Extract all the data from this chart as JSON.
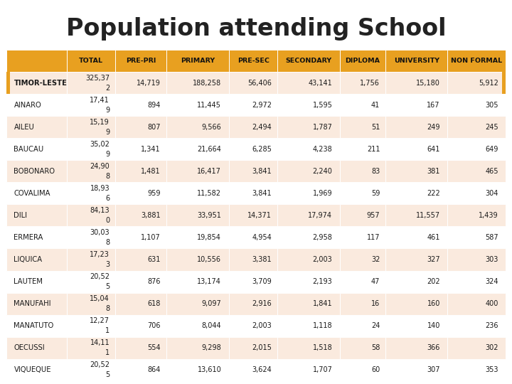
{
  "title": "Population attending School",
  "col_headers": [
    "",
    "TOTAL",
    "PRE-PRI",
    "PRIMARY",
    "PRE-SEC",
    "SECONDARY",
    "DIPLOMA",
    "UNIVERSITY",
    "NON FORMAL"
  ],
  "rows": [
    {
      "name": "TIMOR-LESTE",
      "total": "325,372",
      "pre_pri": "14,719",
      "primary": "188,258",
      "pre_sec": "56,406",
      "secondary": "43,141",
      "diploma": "1,756",
      "university": "15,180",
      "non_formal": "5,912"
    },
    {
      "name": "AINARO",
      "total": "17,419",
      "pre_pri": "894",
      "primary": "11,445",
      "pre_sec": "2,972",
      "secondary": "1,595",
      "diploma": "41",
      "university": "167",
      "non_formal": "305"
    },
    {
      "name": "AILEU",
      "total": "15,199",
      "pre_pri": "807",
      "primary": "9,566",
      "pre_sec": "2,494",
      "secondary": "1,787",
      "diploma": "51",
      "university": "249",
      "non_formal": "245"
    },
    {
      "name": "BAUCAU",
      "total": "35,029",
      "pre_pri": "1,341",
      "primary": "21,664",
      "pre_sec": "6,285",
      "secondary": "4,238",
      "diploma": "211",
      "university": "641",
      "non_formal": "649"
    },
    {
      "name": "BOBONARO",
      "total": "24,908",
      "pre_pri": "1,481",
      "primary": "16,417",
      "pre_sec": "3,841",
      "secondary": "2,240",
      "diploma": "83",
      "university": "381",
      "non_formal": "465"
    },
    {
      "name": "COVALIMA",
      "total": "18,936",
      "pre_pri": "959",
      "primary": "11,582",
      "pre_sec": "3,841",
      "secondary": "1,969",
      "diploma": "59",
      "university": "222",
      "non_formal": "304"
    },
    {
      "name": "DILI",
      "total": "84,130",
      "pre_pri": "3,881",
      "primary": "33,951",
      "pre_sec": "14,371",
      "secondary": "17,974",
      "diploma": "957",
      "university": "11,557",
      "non_formal": "1,439"
    },
    {
      "name": "ERMERA",
      "total": "30,038",
      "pre_pri": "1,107",
      "primary": "19,854",
      "pre_sec": "4,954",
      "secondary": "2,958",
      "diploma": "117",
      "university": "461",
      "non_formal": "587"
    },
    {
      "name": "LIQUICA",
      "total": "17,233",
      "pre_pri": "631",
      "primary": "10,556",
      "pre_sec": "3,381",
      "secondary": "2,003",
      "diploma": "32",
      "university": "327",
      "non_formal": "303"
    },
    {
      "name": "LAUTEM",
      "total": "20,525",
      "pre_pri": "876",
      "primary": "13,174",
      "pre_sec": "3,709",
      "secondary": "2,193",
      "diploma": "47",
      "university": "202",
      "non_formal": "324"
    },
    {
      "name": "MANUFAHI",
      "total": "15,048",
      "pre_pri": "618",
      "primary": "9,097",
      "pre_sec": "2,916",
      "secondary": "1,841",
      "diploma": "16",
      "university": "160",
      "non_formal": "400"
    },
    {
      "name": "MANATUTO",
      "total": "12,271",
      "pre_pri": "706",
      "primary": "8,044",
      "pre_sec": "2,003",
      "secondary": "1,118",
      "diploma": "24",
      "university": "140",
      "non_formal": "236"
    },
    {
      "name": "OECUSSI",
      "total": "14,111",
      "pre_pri": "554",
      "primary": "9,298",
      "pre_sec": "2,015",
      "secondary": "1,518",
      "diploma": "58",
      "university": "366",
      "non_formal": "302"
    },
    {
      "name": "VIQUEQUE",
      "total": "20,525",
      "pre_pri": "864",
      "primary": "13,610",
      "pre_sec": "3,624",
      "secondary": "1,707",
      "diploma": "60",
      "university": "307",
      "non_formal": "353"
    }
  ],
  "total_split": {
    "TIMOR-LESTE": [
      "325,37",
      "2"
    ],
    "AINARO": [
      "17,41",
      "9"
    ],
    "AILEU": [
      "15,19",
      "9"
    ],
    "BAUCAU": [
      "35,02",
      "9"
    ],
    "BOBONARO": [
      "24,90",
      "8"
    ],
    "COVALIMA": [
      "18,93",
      "6"
    ],
    "DILI": [
      "84,13",
      "0"
    ],
    "ERMERA": [
      "30,03",
      "8"
    ],
    "LIQUICA": [
      "17,23",
      "3"
    ],
    "LAUTEM": [
      "20,52",
      "5"
    ],
    "MANUFAHI": [
      "15,04",
      "8"
    ],
    "MANATUTO": [
      "12,27",
      "1"
    ],
    "OECUSSI": [
      "14,11",
      "1"
    ],
    "VIQUEQUE": [
      "20,52",
      "5"
    ]
  },
  "header_bg": "#E8A020",
  "row_bg_even": "#FAEADE",
  "row_bg_odd": "#FFFFFF",
  "accent_color": "#E8A020",
  "title_fontsize": 24,
  "header_fontsize": 6.8,
  "cell_fontsize": 7.0,
  "name_fontsize": 7.2
}
